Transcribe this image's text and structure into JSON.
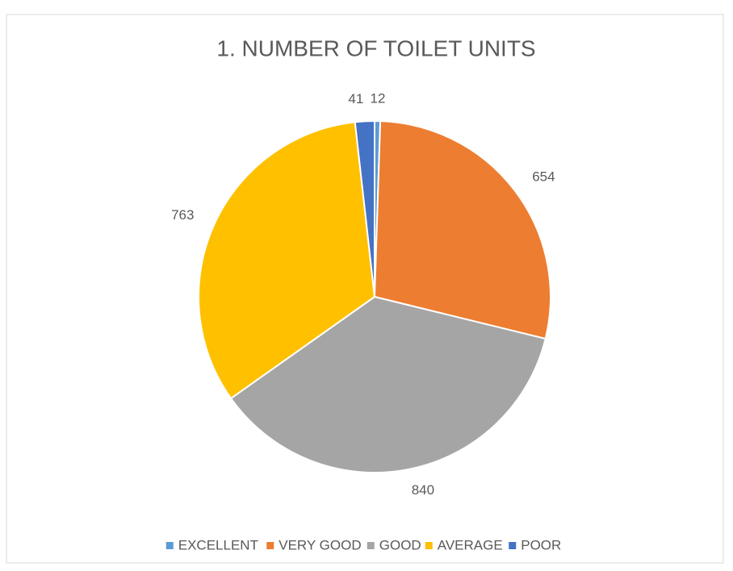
{
  "chart_data": {
    "type": "pie",
    "title": "1. NUMBER OF TOILET UNITS",
    "categories": [
      "EXCELLENT",
      "VERY GOOD",
      "GOOD",
      "AVERAGE",
      "POOR"
    ],
    "values": [
      12,
      654,
      840,
      763,
      41
    ],
    "colors": [
      "#5b9bd5",
      "#ed7d31",
      "#a5a5a5",
      "#ffc000",
      "#4472c4"
    ],
    "legend": "bottom"
  }
}
